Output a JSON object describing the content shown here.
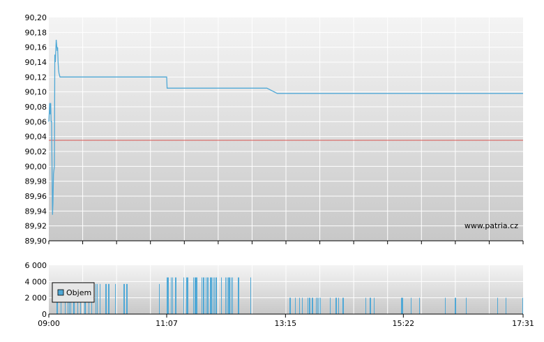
{
  "watermark": "www.patria.cz",
  "colors": {
    "price_line": "#4fa8d6",
    "reference_line": "#d9534f",
    "volume_bar": "#4fa8d6",
    "grid": "#ffffff",
    "axis": "#000000",
    "plot_bg_top": "#f4f4f4",
    "plot_bg_bottom": "#c8c8c8"
  },
  "chart_data": [
    {
      "type": "line",
      "title": "",
      "xlabel": "",
      "ylabel": "",
      "ylim": [
        89.9,
        90.2
      ],
      "xlim": [
        "09:00",
        "17:31"
      ],
      "grid": true,
      "y_ticks": [
        "90,20",
        "90,18",
        "90,16",
        "90,14",
        "90,12",
        "90,10",
        "90,08",
        "90,06",
        "90,04",
        "90,02",
        "90,00",
        "89,98",
        "89,96",
        "89,94",
        "89,92",
        "89,90"
      ],
      "reference_value": 90.035,
      "series": [
        {
          "x": [
            "09:00",
            "09:01",
            "09:01",
            "09:02",
            "09:02",
            "09:03",
            "09:03",
            "09:04",
            "09:04",
            "09:05",
            "09:06",
            "09:06",
            "09:07",
            "09:08",
            "09:09",
            "09:09",
            "09:10",
            "09:10",
            "09:11",
            "09:12",
            "09:14",
            "09:18",
            "09:25",
            "11:00",
            "11:07",
            "11:07",
            "11:30",
            "12:00",
            "12:30",
            "12:55",
            "13:06",
            "13:15",
            "15:22",
            "17:31"
          ],
          "y": [
            90.06,
            90.085,
            90.07,
            90.085,
            90.06,
            90.06,
            90.0,
            89.935,
            89.95,
            89.99,
            90.0,
            90.15,
            90.14,
            90.17,
            90.155,
            90.16,
            90.14,
            90.13,
            90.125,
            90.12,
            90.12,
            90.12,
            90.12,
            90.12,
            90.12,
            90.105,
            90.105,
            90.105,
            90.105,
            90.105,
            90.098,
            90.098,
            90.098,
            90.098
          ]
        }
      ]
    },
    {
      "type": "bar",
      "title": "",
      "ylim": [
        0,
        6000
      ],
      "y_ticks": [
        "0",
        "2 000",
        "4 000",
        "6 000"
      ],
      "x_ticks": [
        "09:00",
        "11:07",
        "13:15",
        "15:22",
        "17:31"
      ],
      "legend": "Objem",
      "legend_position": "top-left",
      "series": [
        {
          "name": "Objem",
          "segments": [
            {
              "from": "09:05",
              "to": "10:25",
              "value": 3700,
              "density": 0.33
            },
            {
              "from": "10:48",
              "to": "11:00",
              "value": 3700,
              "density": 0.4
            },
            {
              "from": "11:07",
              "to": "12:40",
              "value": 4500,
              "density": 0.45
            },
            {
              "from": "13:10",
              "to": "13:55",
              "value": 2000,
              "density": 0.45
            },
            {
              "from": "14:00",
              "to": "14:20",
              "value": 2000,
              "density": 0.3
            },
            {
              "from": "14:38",
              "to": "15:06",
              "value": 2000,
              "density": 0.2
            },
            {
              "from": "15:15",
              "to": "15:48",
              "value": 2000,
              "density": 0.2
            },
            {
              "from": "16:05",
              "to": "16:32",
              "value": 2000,
              "density": 0.18
            },
            {
              "from": "17:00",
              "to": "17:31",
              "value": 2000,
              "density": 0.08
            }
          ]
        }
      ]
    }
  ]
}
